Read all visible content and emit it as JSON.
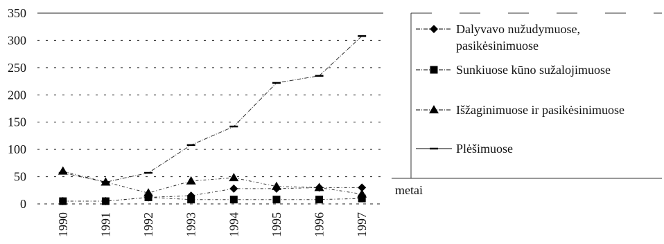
{
  "chart_data": {
    "type": "line",
    "title": "",
    "xlabel": "metai",
    "ylabel": "",
    "x": [
      "1990",
      "1991",
      "1992",
      "1993",
      "1994",
      "1995",
      "1996",
      "1997"
    ],
    "ylim": [
      0,
      350
    ],
    "yticks": [
      "0",
      "50",
      "100",
      "150",
      "200",
      "250",
      "300",
      "350"
    ],
    "grid": true,
    "legend_position": "right",
    "series": [
      {
        "name": "Dalyvavo nužudymuose, pasikėsinimuose",
        "marker": "diamond",
        "values": [
          5,
          5,
          12,
          15,
          28,
          28,
          30,
          30
        ]
      },
      {
        "name": "Sunkiuose kūno sužalojimuose",
        "marker": "square",
        "values": [
          5,
          5,
          12,
          8,
          8,
          8,
          8,
          10
        ]
      },
      {
        "name": "Išžaginimuose ir pasikėsinimuose",
        "marker": "triangle",
        "values": [
          60,
          40,
          20,
          42,
          48,
          32,
          30,
          18
        ]
      },
      {
        "name": "Plėšimuose",
        "marker": "dash",
        "values": [
          57,
          40,
          57,
          108,
          142,
          222,
          235,
          308
        ]
      }
    ]
  }
}
